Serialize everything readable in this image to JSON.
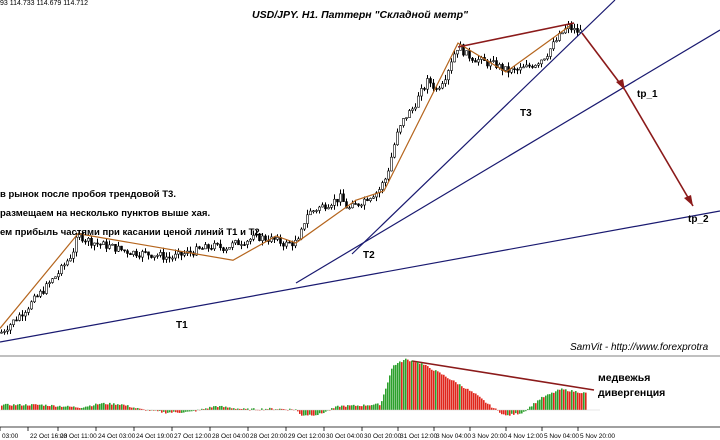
{
  "header": {
    "ohlc_text": "93 114.733 114.679 114.712",
    "chart_title": "USD/JPY. H1. Паттерн \"Складной метр\""
  },
  "notes": [
    "в рынок после пробоя трендовой Т3.",
    "размещаем на несколько пунктов выше хая.",
    "ем прибыль частями при касании ценой линий Т1 и Т2."
  ],
  "line_labels": {
    "t1": "T1",
    "t2": "T2",
    "t3": "T3",
    "tp1": "tp_1",
    "tp2": "tp_2"
  },
  "signature": "SamVit - http://www.forexprotra",
  "divergence_label": [
    "медвежья",
    "дивергенция"
  ],
  "colors": {
    "background": "#ffffff",
    "candles": "#000000",
    "trendlines": "#191970",
    "divergence": "#8b1a1a",
    "hist_up": "#2ca02c",
    "hist_down": "#e0261b",
    "separator": "#808080"
  },
  "chart_data": {
    "type": "candlestick",
    "title": "USD/JPY. H1. Паттерн \"Складной метр\"",
    "timeframe": "H1",
    "x_ticks": [
      "03:00",
      "22 Oct 16:00",
      "23 Oct 11:00",
      "24 Oct 03:00",
      "24 Oct 19:00",
      "27 Oct 12:00",
      "28 Oct 04:00",
      "28 Oct 20:00",
      "29 Oct 12:00",
      "30 Oct 04:00",
      "30 Oct 20:00",
      "31 Oct 12:00",
      "3 Nov 04:00",
      "3 Nov 20:00",
      "4 Nov 12:00",
      "5 Nov 04:00",
      "5 Nov 20:00"
    ],
    "price_path": [
      [
        0,
        108.0
      ],
      [
        14,
        108.55
      ],
      [
        28,
        109.15
      ],
      [
        45,
        109.95
      ],
      [
        60,
        110.7
      ],
      [
        72,
        111.45
      ],
      [
        78,
        112.25
      ],
      [
        86,
        112.05
      ],
      [
        98,
        111.85
      ],
      [
        110,
        111.75
      ],
      [
        125,
        111.55
      ],
      [
        140,
        111.45
      ],
      [
        155,
        111.4
      ],
      [
        170,
        111.25
      ],
      [
        182,
        111.4
      ],
      [
        195,
        111.55
      ],
      [
        212,
        111.75
      ],
      [
        225,
        111.7
      ],
      [
        240,
        111.95
      ],
      [
        258,
        112.15
      ],
      [
        272,
        112.05
      ],
      [
        286,
        111.85
      ],
      [
        298,
        111.95
      ],
      [
        302,
        112.5
      ],
      [
        306,
        113.15
      ],
      [
        315,
        113.35
      ],
      [
        325,
        113.55
      ],
      [
        340,
        113.85
      ],
      [
        348,
        113.35
      ],
      [
        356,
        113.55
      ],
      [
        368,
        113.9
      ],
      [
        378,
        114.15
      ],
      [
        386,
        114.75
      ],
      [
        390,
        115.45
      ],
      [
        396,
        116.5
      ],
      [
        404,
        117.3
      ],
      [
        412,
        117.7
      ],
      [
        420,
        118.35
      ],
      [
        428,
        118.95
      ],
      [
        436,
        118.55
      ],
      [
        446,
        119.2
      ],
      [
        452,
        119.95
      ],
      [
        458,
        120.45
      ],
      [
        466,
        120.05
      ],
      [
        476,
        119.85
      ],
      [
        486,
        119.7
      ],
      [
        496,
        119.6
      ],
      [
        506,
        119.35
      ],
      [
        516,
        119.35
      ],
      [
        526,
        119.5
      ],
      [
        536,
        119.7
      ],
      [
        546,
        120.05
      ],
      [
        554,
        120.55
      ],
      [
        562,
        121.0
      ],
      [
        568,
        121.25
      ],
      [
        576,
        121.05
      ],
      [
        580,
        121.05
      ]
    ],
    "indicator": {
      "type": "histogram",
      "bars": [
        [
          0,
          0.4
        ],
        [
          40,
          0.4
        ],
        [
          60,
          0.3
        ],
        [
          80,
          0.2
        ],
        [
          100,
          0.5
        ],
        [
          120,
          0.45
        ],
        [
          140,
          0.05
        ],
        [
          165,
          -0.2
        ],
        [
          190,
          -0.15
        ],
        [
          215,
          0.3
        ],
        [
          245,
          0.05
        ],
        [
          270,
          0.1
        ],
        [
          295,
          0.05
        ],
        [
          300,
          -0.4
        ],
        [
          318,
          -0.35
        ],
        [
          338,
          0.3
        ],
        [
          360,
          0.35
        ],
        [
          380,
          0.45
        ],
        [
          392,
          3.4
        ],
        [
          405,
          3.9
        ],
        [
          420,
          3.6
        ],
        [
          440,
          2.8
        ],
        [
          460,
          1.9
        ],
        [
          475,
          1.2
        ],
        [
          490,
          0.3
        ],
        [
          505,
          -0.45
        ],
        [
          522,
          -0.2
        ],
        [
          540,
          0.9
        ],
        [
          560,
          1.6
        ],
        [
          585,
          1.3
        ]
      ]
    },
    "trendlines": [
      {
        "name": "T1"
      },
      {
        "name": "T2"
      },
      {
        "name": "T3"
      }
    ],
    "annotations": [
      "T1",
      "T2",
      "T3",
      "tp_1",
      "tp_2",
      "медвежья дивергенция"
    ]
  }
}
